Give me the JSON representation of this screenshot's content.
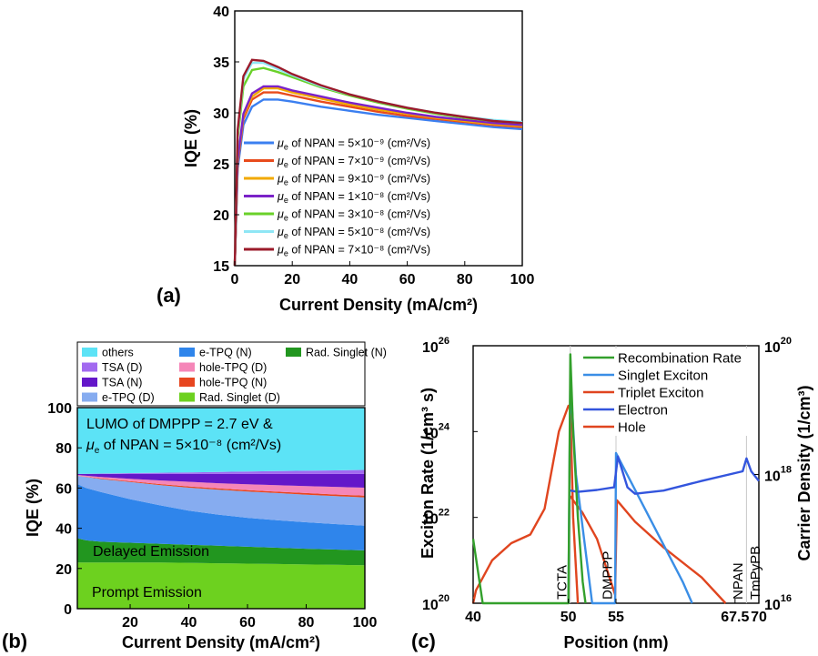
{
  "panel_labels": {
    "a": "(a)",
    "b": "(b)",
    "c": "(c)"
  },
  "chart_data": [
    {
      "id": "a",
      "type": "line",
      "xlabel": "Current Density (mA/cm²)",
      "ylabel": "IQE (%)",
      "xlim": [
        0,
        100
      ],
      "ylim": [
        15,
        40
      ],
      "xticks": [
        "0",
        "20",
        "40",
        "60",
        "80",
        "100"
      ],
      "yticks": [
        "15",
        "20",
        "25",
        "30",
        "35",
        "40"
      ],
      "series": [
        {
          "name": "μe of NPAN = 5×10⁻⁹ (cm²/Vs)",
          "color": "#3b7ff0",
          "x": [
            0,
            1,
            3,
            6,
            10,
            15,
            20,
            30,
            40,
            50,
            60,
            70,
            80,
            90,
            100
          ],
          "y": [
            15,
            24.5,
            28.8,
            30.6,
            31.3,
            31.3,
            31.1,
            30.6,
            30.2,
            29.8,
            29.5,
            29.2,
            28.9,
            28.6,
            28.4
          ]
        },
        {
          "name": "μe of NPAN = 7×10⁻⁹ (cm²/Vs)",
          "color": "#e84b1c",
          "x": [
            0,
            1,
            3,
            6,
            10,
            15,
            20,
            30,
            40,
            50,
            60,
            70,
            80,
            90,
            100
          ],
          "y": [
            15,
            25.0,
            29.4,
            31.3,
            32.0,
            32.0,
            31.7,
            31.1,
            30.6,
            30.1,
            29.7,
            29.4,
            29.1,
            28.8,
            28.6
          ]
        },
        {
          "name": "μe of NPAN = 9×10⁻⁹ (cm²/Vs)",
          "color": "#f2a900",
          "x": [
            0,
            1,
            3,
            6,
            10,
            15,
            20,
            30,
            40,
            50,
            60,
            70,
            80,
            90,
            100
          ],
          "y": [
            15,
            25.2,
            29.7,
            31.6,
            32.4,
            32.4,
            32.0,
            31.4,
            30.8,
            30.3,
            29.9,
            29.5,
            29.2,
            28.9,
            28.7
          ]
        },
        {
          "name": "μe of NPAN = 1×10⁻⁸ (cm²/Vs)",
          "color": "#7b22c8",
          "x": [
            0,
            1,
            3,
            6,
            10,
            15,
            20,
            30,
            40,
            50,
            60,
            70,
            80,
            90,
            100
          ],
          "y": [
            15,
            25.4,
            29.9,
            31.9,
            32.6,
            32.6,
            32.2,
            31.6,
            31.0,
            30.5,
            30.0,
            29.6,
            29.3,
            29.0,
            28.8
          ]
        },
        {
          "name": "μe of NPAN = 3×10⁻⁸ (cm²/Vs)",
          "color": "#6ad12a",
          "x": [
            0,
            1,
            3,
            6,
            10,
            15,
            20,
            30,
            40,
            50,
            60,
            70,
            80,
            90,
            100
          ],
          "y": [
            15,
            27.5,
            32.6,
            34.2,
            34.4,
            34.0,
            33.5,
            32.5,
            31.7,
            31.0,
            30.4,
            29.9,
            29.5,
            29.2,
            29.0
          ]
        },
        {
          "name": "μe of NPAN = 5×10⁻⁸ (cm²/Vs)",
          "color": "#8fe6f5",
          "x": [
            0,
            1,
            3,
            6,
            10,
            15,
            20,
            30,
            40,
            50,
            60,
            70,
            80,
            90,
            100
          ],
          "y": [
            15,
            28.0,
            33.3,
            34.9,
            34.9,
            34.3,
            33.7,
            32.6,
            31.8,
            31.1,
            30.5,
            30.0,
            29.6,
            29.3,
            29.1
          ]
        },
        {
          "name": "μe of NPAN = 7×10⁻⁸ (cm²/Vs)",
          "color": "#9b1a2a",
          "x": [
            0,
            1,
            3,
            6,
            10,
            15,
            20,
            30,
            40,
            50,
            60,
            70,
            80,
            90,
            100
          ],
          "y": [
            15,
            28.3,
            33.6,
            35.2,
            35.1,
            34.5,
            33.8,
            32.7,
            31.8,
            31.1,
            30.5,
            30.0,
            29.6,
            29.2,
            29.0
          ]
        }
      ]
    },
    {
      "id": "b",
      "type": "area",
      "xlabel": "Current Density (mA/cm²)",
      "ylabel": "IQE (%)",
      "xlim": [
        2,
        100
      ],
      "ylim": [
        0,
        100
      ],
      "xticks": [
        "20",
        "40",
        "60",
        "80",
        "100"
      ],
      "yticks": [
        "0",
        "20",
        "40",
        "60",
        "80",
        "100"
      ],
      "x": [
        2,
        5,
        10,
        20,
        30,
        40,
        50,
        60,
        70,
        80,
        90,
        100
      ],
      "layers": [
        {
          "name": "Rad. Singlet (D)",
          "color": "#6dd11f",
          "upper": [
            23,
            23,
            23,
            23,
            23,
            22.8,
            22.6,
            22.4,
            22.2,
            22.0,
            21.8,
            21.6
          ]
        },
        {
          "name": "Rad. Singlet (N)",
          "color": "#22961f",
          "upper": [
            35,
            34,
            33.3,
            32.8,
            32.3,
            31.8,
            31.3,
            30.8,
            30.3,
            29.8,
            29.4,
            29.0
          ]
        },
        {
          "name": "e-TPQ (N)",
          "color": "#2f85eb",
          "upper": [
            62,
            60,
            58,
            54.5,
            51.5,
            48.8,
            46.8,
            45.2,
            44.0,
            43.0,
            42.1,
            41.3
          ]
        },
        {
          "name": "e-TPQ (D)",
          "color": "#86acf0",
          "upper": [
            66,
            65.5,
            64.5,
            63,
            61.5,
            60.2,
            59.2,
            58.3,
            57.5,
            56.7,
            56.0,
            55.3
          ]
        },
        {
          "name": "hole-TPQ (N)",
          "color": "#e7461f",
          "upper": [
            66,
            65.6,
            64.8,
            63.4,
            62.0,
            60.8,
            59.8,
            59.0,
            58.2,
            57.5,
            56.8,
            56.2
          ]
        },
        {
          "name": "hole-TPQ (D)",
          "color": "#f586b8",
          "upper": [
            66.5,
            66.1,
            65.5,
            64.6,
            63.8,
            63.1,
            62.4,
            61.9,
            61.4,
            61.0,
            60.6,
            60.2
          ]
        },
        {
          "name": "TSA (N)",
          "color": "#6417c9",
          "upper": [
            67,
            67,
            67,
            67,
            67,
            67,
            67,
            67,
            67,
            67,
            67,
            67
          ]
        },
        {
          "name": "TSA (D)",
          "color": "#a26af0",
          "upper": [
            67,
            67.1,
            67.2,
            67.4,
            67.6,
            67.8,
            68.0,
            68.2,
            68.4,
            68.6,
            68.8,
            69.0
          ]
        },
        {
          "name": "others",
          "color": "#5ce3f6",
          "upper": [
            100,
            100,
            100,
            100,
            100,
            100,
            100,
            100,
            100,
            100,
            100,
            100
          ]
        }
      ],
      "legend_order": [
        "others",
        "e-TPQ (N)",
        "Rad. Singlet (N)",
        "TSA (D)",
        "hole-TPQ (D)",
        "TSA (N)",
        "hole-TPQ (N)",
        "e-TPQ (D)",
        "Rad. Singlet (D)"
      ],
      "annotation_line1": "LUMO of DMPPP = 2.7 eV &",
      "annotation_line2": "μe of NPAN = 5×10⁻⁸ (cm²/Vs)",
      "region_labels": [
        "Delayed Emission",
        "Prompt Emission"
      ]
    },
    {
      "id": "c",
      "type": "line",
      "xlabel": "Position (nm)",
      "ylabel": "Exciton Rate (1/cm³ s)",
      "ylabel_right": "Carrier Density (1/cm³)",
      "xlim": [
        40,
        70
      ],
      "xticks": [
        "40",
        "50",
        "55",
        "67.5",
        "70"
      ],
      "xtick_values": [
        40,
        50,
        55,
        67.5,
        70
      ],
      "ylim_left_log10": [
        20,
        26
      ],
      "yticks_left": [
        "10",
        "10",
        "10",
        "10"
      ],
      "yticks_left_exp": [
        "20",
        "22",
        "24",
        "26"
      ],
      "ylim_right_log10": [
        16,
        20
      ],
      "yticks_right": [
        "10",
        "10",
        "10"
      ],
      "yticks_right_exp": [
        "16",
        "18",
        "20"
      ],
      "layer_labels": [
        "TCTA",
        "DMPPP",
        "NPAN",
        "TmPyPB"
      ],
      "boundaries": [
        40,
        50.2,
        55,
        68.7,
        70
      ],
      "series": [
        {
          "name": "Recombination Rate",
          "color": "#33a02c",
          "axis": "left",
          "x": [
            40,
            41,
            50,
            50.2,
            50.5,
            51,
            51.5,
            51.8
          ],
          "y": [
            21.5,
            20,
            20,
            25.8,
            24,
            22,
            20.5,
            20
          ]
        },
        {
          "name": "Singlet Exciton",
          "color": "#3a8ee6",
          "axis": "left",
          "x": [
            50,
            50.2,
            50.8,
            52.5,
            54.9,
            55,
            62,
            63
          ],
          "y": [
            20,
            25.2,
            23,
            20,
            20,
            23.5,
            20.5,
            20
          ]
        },
        {
          "name": "Triplet Exciton",
          "color": "#e0451f",
          "axis": "left",
          "x": [
            50.2,
            50.5,
            51.5,
            53,
            54.9,
            55.1,
            57,
            60,
            64,
            66.5
          ],
          "y": [
            22.5,
            22.4,
            22.1,
            21.5,
            20.2,
            22.4,
            21.9,
            21.3,
            20.6,
            20
          ]
        },
        {
          "name": "Electron",
          "color": "#3355dd",
          "axis": "right",
          "x": [
            50.2,
            51,
            53,
            54.8,
            55.2,
            56.2,
            57,
            60,
            64,
            68.3,
            68.7,
            69.2,
            70
          ],
          "y": [
            17.75,
            17.73,
            17.76,
            17.8,
            18.28,
            17.8,
            17.7,
            17.75,
            17.9,
            18.05,
            18.25,
            18.05,
            17.9
          ]
        },
        {
          "name": "Hole",
          "color": "#e0451f",
          "axis": "left",
          "x": [
            40,
            40.3,
            42,
            44,
            46,
            47.5,
            49,
            50,
            50.2,
            50.5,
            51
          ],
          "y": [
            20,
            20.3,
            21,
            21.4,
            21.6,
            22.2,
            24,
            24.6,
            24.6,
            22,
            20
          ]
        }
      ]
    }
  ]
}
